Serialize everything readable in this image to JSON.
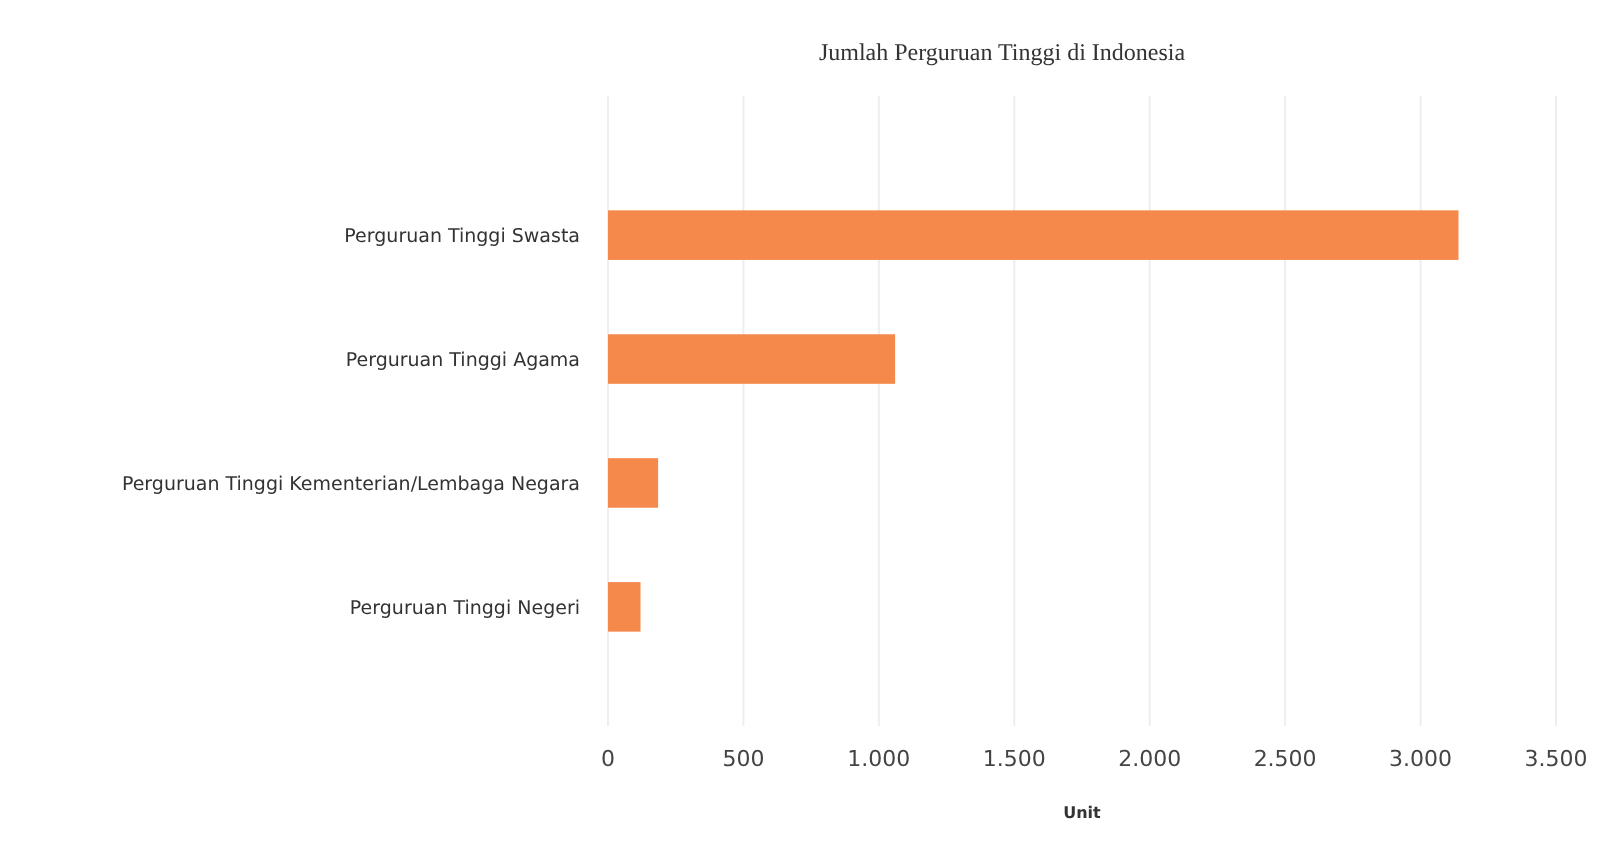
{
  "chart_data": {
    "type": "bar",
    "orientation": "horizontal",
    "title": "Jumlah Perguruan Tinggi di Indonesia",
    "xlabel": "Unit",
    "categories": [
      "Perguruan Tinggi Swasta",
      "Perguruan Tinggi Agama",
      "Perguruan Tinggi Kementerian/Lembaga Negara",
      "Perguruan Tinggi Negeri"
    ],
    "values": [
      3140,
      1060,
      185,
      120
    ],
    "color": "#f4894b",
    "xlim": [
      0,
      3500
    ],
    "xticks": [
      0,
      {
        "value": 500,
        "label": "500"
      },
      {
        "value": 1000,
        "label": "1.000"
      },
      {
        "value": 1500,
        "label": "1.500"
      },
      {
        "value": 2000,
        "label": "2.000"
      },
      {
        "value": 2500,
        "label": "2.500"
      },
      {
        "value": 3000,
        "label": "3.000"
      },
      {
        "value": 3500,
        "label": "3.500"
      }
    ],
    "grid": "x"
  }
}
